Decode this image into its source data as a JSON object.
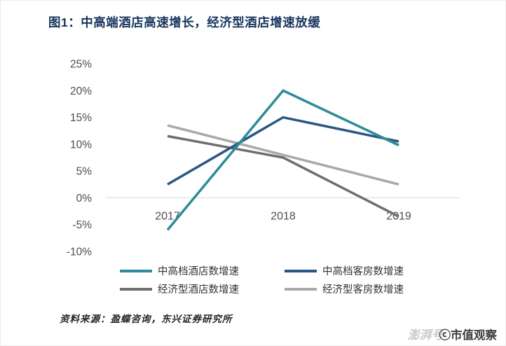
{
  "figure": {
    "title": "图1：中高端酒店高速增长，经济型酒店增速放缓",
    "source": "资料来源：盈蝶咨询，东兴证券研究所",
    "watermark_back": "澎湃号",
    "watermark_front": "ⓒ市值观察"
  },
  "colors": {
    "title": "#17365D",
    "axis_text": "#4d4d4d",
    "zero_line": "#d9d9d9",
    "legend_text": "#333333"
  },
  "chart_data": {
    "type": "line",
    "x_labels": [
      "2017",
      "2018",
      "2019"
    ],
    "series": [
      {
        "name": "中高档酒店数增速",
        "color": "#2E8B9A",
        "values": [
          -6,
          20,
          9.8
        ]
      },
      {
        "name": "中高档客房数增速",
        "color": "#2A5784",
        "values": [
          2.5,
          15,
          10.5
        ]
      },
      {
        "name": "经济型酒店数增速",
        "color": "#6E6E6E",
        "values": [
          11.5,
          7.5,
          -3.5
        ]
      },
      {
        "name": "经济型客房数增速",
        "color": "#A9A9A9",
        "values": [
          13.5,
          8,
          2.5
        ]
      }
    ],
    "y_ticks": [
      25,
      20,
      15,
      10,
      5,
      0,
      -5,
      -10
    ],
    "y_tick_labels": [
      "25%",
      "20%",
      "15%",
      "10%",
      "5%",
      "0%",
      "-5%",
      "-10%"
    ],
    "ylim": [
      -10,
      25
    ],
    "grid": "zero-line-only",
    "legend_position": "bottom",
    "title": "图1：中高端酒店高速增长，经济型酒店增速放缓",
    "xlabel": "",
    "ylabel": ""
  }
}
